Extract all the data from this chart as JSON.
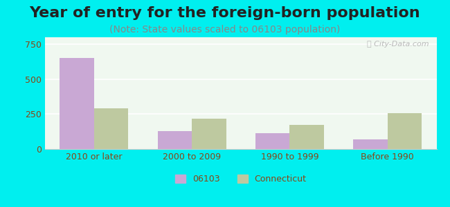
{
  "title": "Year of entry for the foreign-born population",
  "subtitle": "(Note: State values scaled to 06103 population)",
  "categories": [
    "2010 or later",
    "2000 to 2009",
    "1990 to 1999",
    "Before 1990"
  ],
  "series_06103": [
    650,
    130,
    115,
    70
  ],
  "series_connecticut": [
    290,
    215,
    175,
    255
  ],
  "color_06103": "#c9a8d4",
  "color_connecticut": "#bec9a0",
  "background_outer": "#00efef",
  "background_chart": "#f0f8f0",
  "ylim": [
    0,
    800
  ],
  "yticks": [
    0,
    250,
    500,
    750
  ],
  "bar_width": 0.35,
  "legend_06103": "06103",
  "legend_connecticut": "Connecticut",
  "title_fontsize": 16,
  "subtitle_fontsize": 10,
  "axis_label_color": "#8b4513",
  "tick_label_color": "#8b4513"
}
